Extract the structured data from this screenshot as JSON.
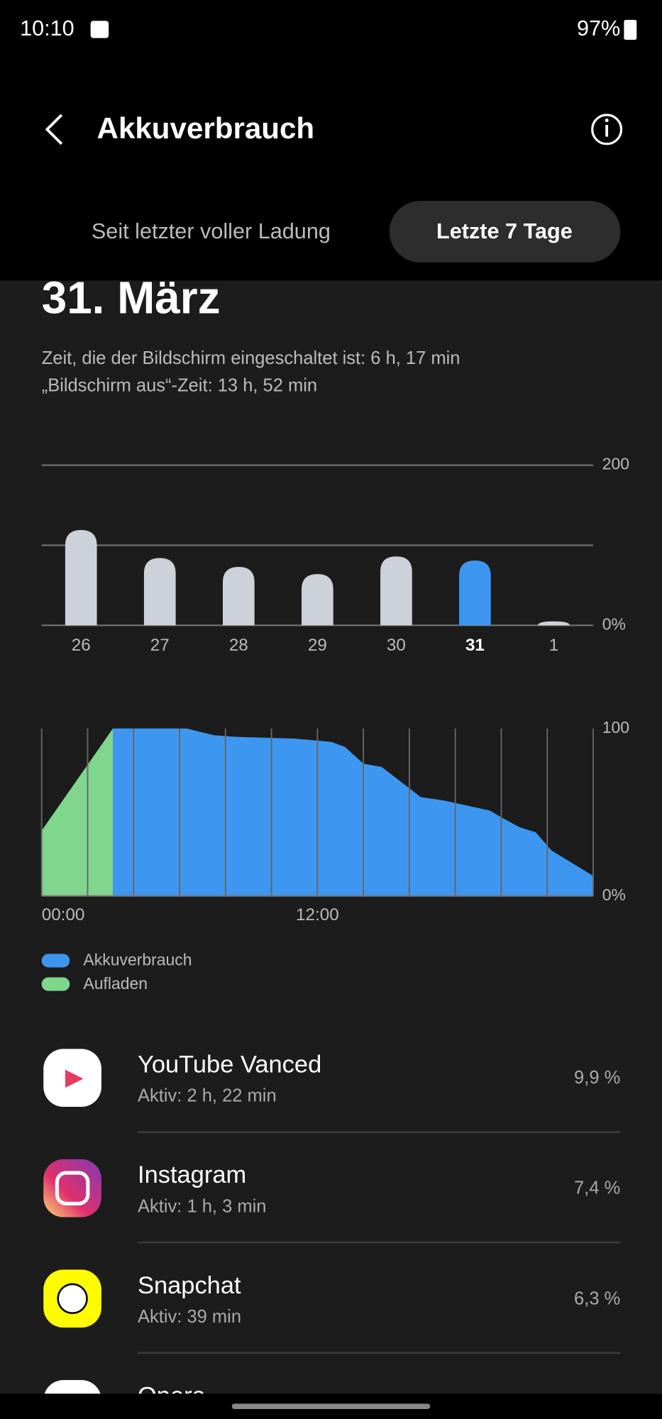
{
  "status_bar": {
    "time": "10:10",
    "battery": "97%"
  },
  "header": {
    "title": "Akkuverbrauch"
  },
  "tabs": [
    "Seit letzter voller Ladung",
    "Letzte 7 Tage"
  ],
  "date": "31. März",
  "screen_on": "Zeit, die der Bildschirm eingeschaltet ist: 6 h, 17 min",
  "screen_off": "„Bildschirm aus“-Zeit: 13 h, 52 min",
  "chart_data": [
    {
      "type": "bar",
      "categories": [
        "26",
        "27",
        "28",
        "29",
        "30",
        "31",
        "1"
      ],
      "values": [
        119,
        84,
        73,
        64,
        86,
        81,
        5
      ],
      "color": "#cdd1d9",
      "highlight": "31",
      "highlight_color": "#3d97f0",
      "ylim": [
        0,
        200
      ],
      "yticks": [
        {
          "value": 0,
          "label": "0%"
        },
        200
      ],
      "ygrid": [
        0,
        100,
        200
      ]
    },
    {
      "type": "area",
      "xlim": [
        0,
        24
      ],
      "xticks": [
        {
          "value": 0,
          "label": "00:00"
        },
        {
          "value": 12,
          "label": "12:00"
        }
      ],
      "xgrid": [
        0,
        2,
        4,
        6,
        8,
        10,
        12,
        14,
        16,
        18,
        20,
        22,
        24
      ],
      "ylim": [
        0,
        100
      ],
      "yticks": [
        {
          "value": 0,
          "label": "0%"
        },
        100
      ],
      "series": [
        {
          "name": "Akkuverbrauch",
          "color": "#3d97f0",
          "x": [
            3.1,
            6.3,
            7.5,
            8.5,
            11,
            12.6,
            13.2,
            14,
            14.8,
            16.5,
            17.5,
            19.5,
            20,
            20.8,
            21.5,
            22.2,
            24
          ],
          "values": [
            100,
            100,
            96,
            95,
            94,
            92,
            89,
            79,
            77,
            59,
            57,
            51,
            47,
            41,
            38,
            27,
            12
          ]
        },
        {
          "name": "Aufladen",
          "color": "#7fd68c",
          "x": [
            0,
            3.1
          ],
          "values": [
            39,
            100
          ]
        }
      ]
    }
  ],
  "apps": [
    {
      "name": "YouTube Vanced",
      "active": "Aktiv: 2 h, 22 min",
      "usage": "9,9 %"
    },
    {
      "name": "Instagram",
      "active": "Aktiv: 1 h, 3 min",
      "usage": "7,4 %"
    },
    {
      "name": "Snapchat",
      "active": "Aktiv: 39 min",
      "usage": "6,3 %"
    },
    {
      "name": "Opera"
    }
  ]
}
